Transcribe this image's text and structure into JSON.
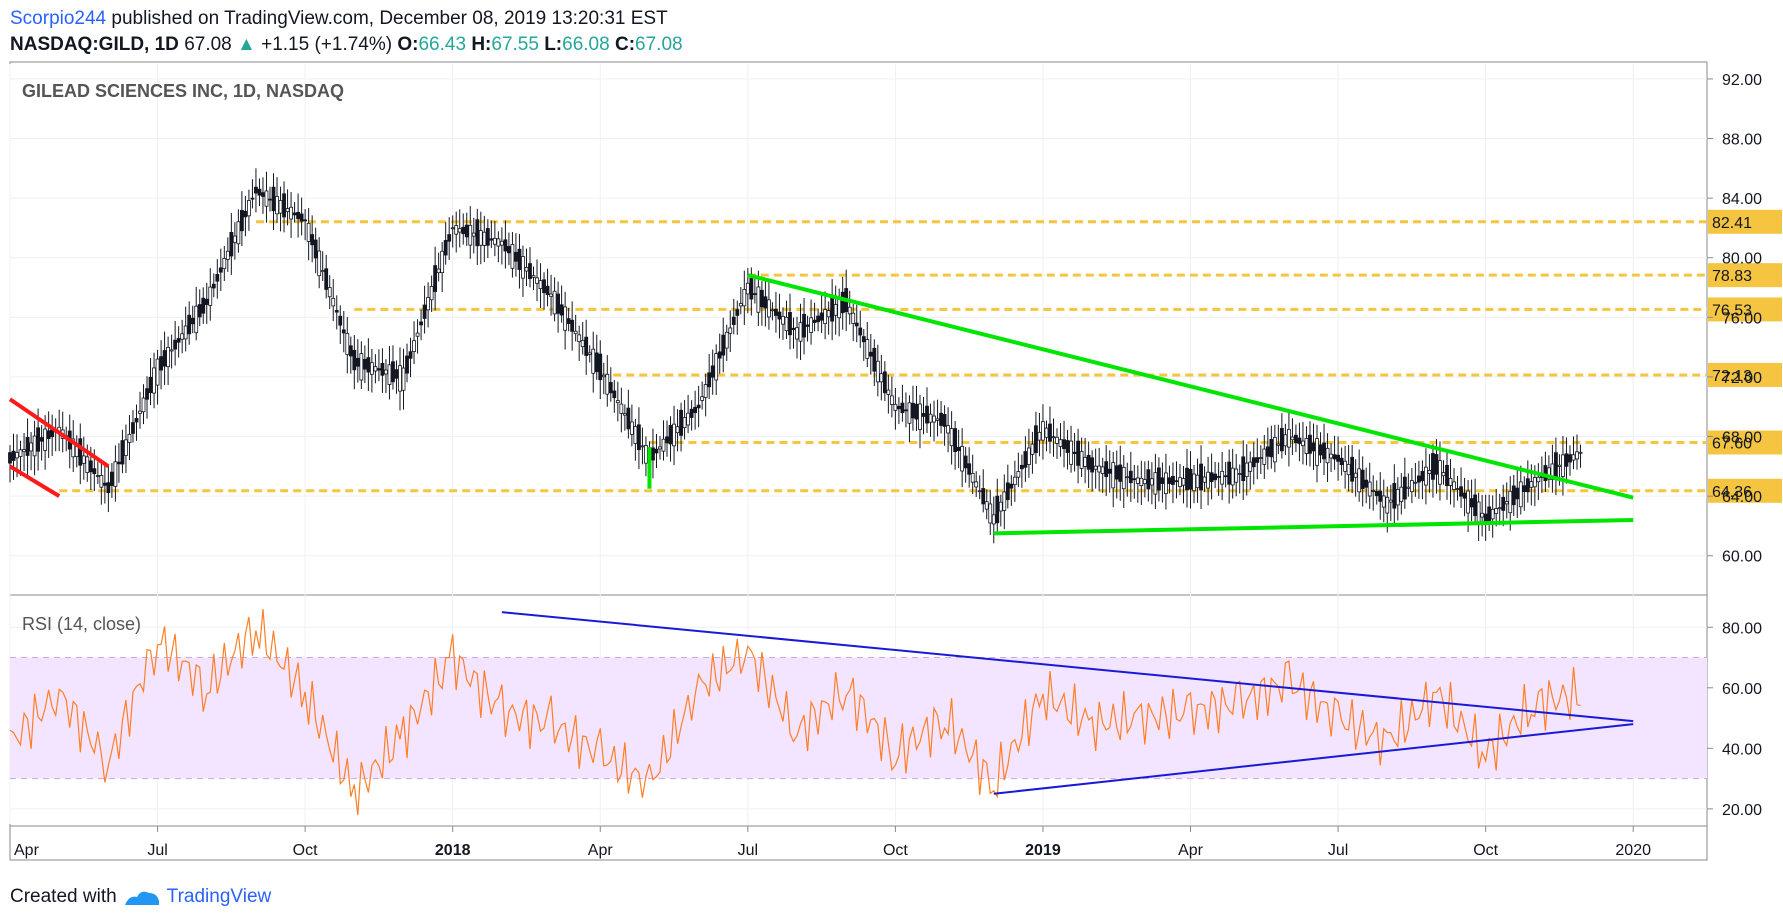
{
  "header": {
    "user": "Scorpio244",
    "published": "published on TradingView.com, December 08, 2019 13:20:31 EST",
    "symbol": "NASDAQ:GILD, 1D",
    "price": "67.08",
    "change": "+1.15 (+1.74%)",
    "open_label": "O:",
    "open": "66.43",
    "high_label": "H:",
    "high": "67.55",
    "low_label": "L:",
    "low": "66.08",
    "close_label": "C:",
    "close": "67.08"
  },
  "footer": {
    "created": "Created with",
    "brand": "TradingView"
  },
  "colors": {
    "up": "#26a69a",
    "down": "#ef5350",
    "candle": "#131722",
    "level": "#f5c542",
    "trend_green": "#00e600",
    "trend_red": "#ff1a1a",
    "rsi": "#ff7f27",
    "rsi_lines": "#1a1ad6",
    "rsi_band": "#f3e5ff"
  },
  "chart_data": [
    {
      "type": "candlestick",
      "title": "GILEAD SCIENCES INC, 1D, NASDAQ",
      "ylim": [
        57.5,
        93
      ],
      "y_ticks": [
        "92.00",
        "88.00",
        "84.00",
        "80.00",
        "76.00",
        "72.00",
        "68.00",
        "64.00",
        "60.00"
      ],
      "x_ticks": [
        "Apr",
        "Jul",
        "Oct",
        "2018",
        "Apr",
        "Jul",
        "Oct",
        "2019",
        "Apr",
        "Jul",
        "Oct",
        "2020"
      ],
      "x_tick_bold": [
        false,
        false,
        false,
        true,
        false,
        false,
        false,
        true,
        false,
        false,
        false,
        false
      ],
      "x_tick_dates": [
        "2017-04",
        "2017-07",
        "2017-10",
        "2018-01",
        "2018-04",
        "2018-07",
        "2018-10",
        "2019-01",
        "2019-04",
        "2019-07",
        "2019-10",
        "2020-01"
      ],
      "levels": [
        {
          "price": 82.41,
          "label": "82.41",
          "from": "2017-09"
        },
        {
          "price": 78.83,
          "label": "78.83",
          "from": "2018-07"
        },
        {
          "price": 76.53,
          "label": "76.53",
          "from": "2017-11"
        },
        {
          "price": 72.13,
          "label": "72.13",
          "from": "2018-04"
        },
        {
          "price": 67.6,
          "label": "67.60",
          "from": "2018-05"
        },
        {
          "price": 64.36,
          "label": "64.36",
          "from": "2017-05"
        }
      ],
      "trendlines": [
        {
          "color": "green",
          "from": [
            "2018-07",
            78.83
          ],
          "to": [
            "2020-01",
            63.9
          ]
        },
        {
          "color": "green",
          "from": [
            "2018-12",
            61.5
          ],
          "to": [
            "2020-01",
            62.4
          ]
        },
        {
          "color": "green",
          "from": [
            "2018-05",
            64.5
          ],
          "to": [
            "2018-05",
            67.3
          ]
        },
        {
          "color": "red",
          "from": [
            "2017-04",
            70.5
          ],
          "to": [
            "2017-06",
            66.0
          ]
        },
        {
          "color": "red",
          "from": [
            "2017-04",
            66.0
          ],
          "to": [
            "2017-05",
            64.0
          ]
        }
      ],
      "closes": [
        [
          "2017-04",
          66.5
        ],
        [
          "2017-05",
          68.5
        ],
        [
          "2017-06",
          64.5
        ],
        [
          "2017-07",
          72.5
        ],
        [
          "2017-08",
          77.0
        ],
        [
          "2017-09",
          84.5
        ],
        [
          "2017-10",
          82.5
        ],
        [
          "2017-11",
          73.0
        ],
        [
          "2017-12",
          72.0
        ],
        [
          "2018-01",
          82.0
        ],
        [
          "2018-02",
          81.0
        ],
        [
          "2018-03",
          77.5
        ],
        [
          "2018-04",
          72.5
        ],
        [
          "2018-05",
          66.5
        ],
        [
          "2018-06",
          70.0
        ],
        [
          "2018-07",
          78.0
        ],
        [
          "2018-08",
          75.0
        ],
        [
          "2018-09",
          77.0
        ],
        [
          "2018-10",
          70.0
        ],
        [
          "2018-11",
          69.0
        ],
        [
          "2018-12",
          62.5
        ],
        [
          "2019-01",
          68.5
        ],
        [
          "2019-02",
          66.0
        ],
        [
          "2019-03",
          65.0
        ],
        [
          "2019-04",
          65.0
        ],
        [
          "2019-05",
          65.5
        ],
        [
          "2019-06",
          68.0
        ],
        [
          "2019-07",
          66.5
        ],
        [
          "2019-08",
          63.5
        ],
        [
          "2019-09",
          66.0
        ],
        [
          "2019-10",
          62.5
        ],
        [
          "2019-11",
          65.0
        ],
        [
          "2019-12",
          67.08
        ]
      ]
    },
    {
      "type": "line",
      "title": "RSI (14, close)",
      "ylim": [
        15,
        90
      ],
      "y_ticks": [
        "80.00",
        "60.00",
        "40.00",
        "20.00"
      ],
      "band": [
        30,
        70
      ],
      "series": [
        {
          "values": [
            [
              "2017-04",
              42
            ],
            [
              "2017-05",
              58
            ],
            [
              "2017-06",
              35
            ],
            [
              "2017-07",
              76
            ],
            [
              "2017-08",
              60
            ],
            [
              "2017-09",
              80
            ],
            [
              "2017-10",
              58
            ],
            [
              "2017-11",
              25
            ],
            [
              "2017-12",
              45
            ],
            [
              "2018-01",
              70
            ],
            [
              "2018-02",
              52
            ],
            [
              "2018-03",
              48
            ],
            [
              "2018-04",
              38
            ],
            [
              "2018-05",
              28
            ],
            [
              "2018-06",
              60
            ],
            [
              "2018-07",
              72
            ],
            [
              "2018-08",
              45
            ],
            [
              "2018-09",
              60
            ],
            [
              "2018-10",
              38
            ],
            [
              "2018-11",
              50
            ],
            [
              "2018-12",
              28
            ],
            [
              "2019-01",
              58
            ],
            [
              "2019-02",
              48
            ],
            [
              "2019-03",
              50
            ],
            [
              "2019-04",
              52
            ],
            [
              "2019-05",
              55
            ],
            [
              "2019-06",
              62
            ],
            [
              "2019-07",
              50
            ],
            [
              "2019-08",
              42
            ],
            [
              "2019-09",
              58
            ],
            [
              "2019-10",
              38
            ],
            [
              "2019-11",
              55
            ],
            [
              "2019-12",
              58
            ]
          ]
        }
      ],
      "trendlines": [
        {
          "from": [
            "2018-02",
            85
          ],
          "to": [
            "2020-01",
            49
          ]
        },
        {
          "from": [
            "2018-12",
            25
          ],
          "to": [
            "2020-01",
            48
          ]
        }
      ]
    }
  ]
}
